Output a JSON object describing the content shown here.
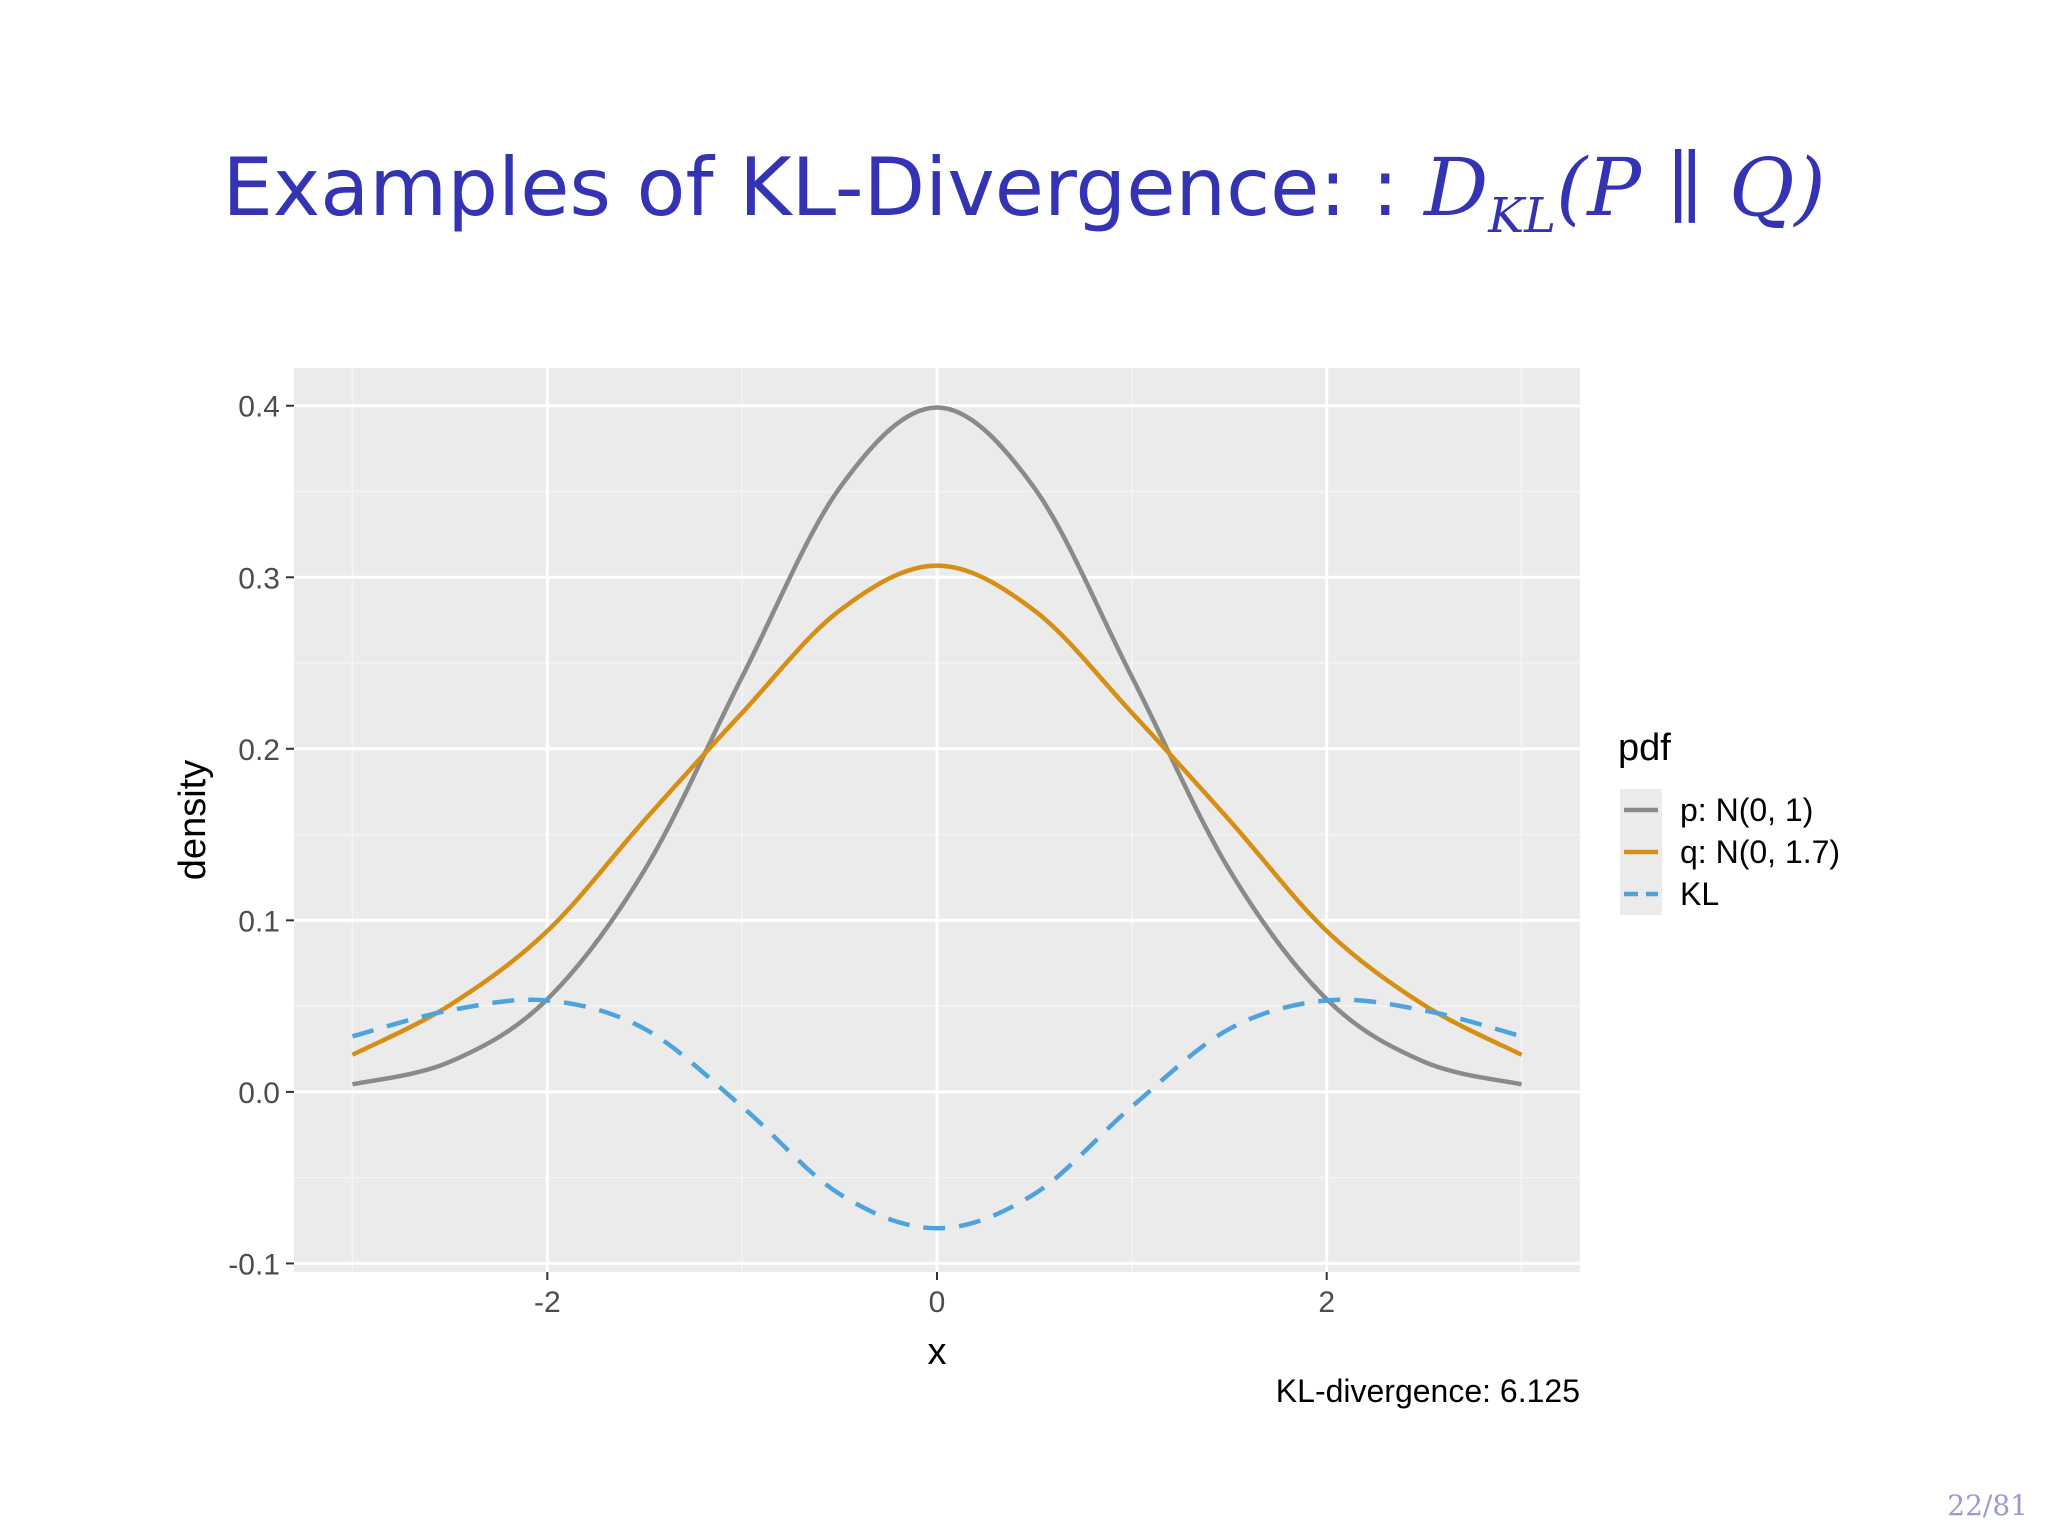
{
  "slide": {
    "title_text": "Examples of KL-Divergence: : ",
    "title_math_d": "D",
    "title_math_sub": "KL",
    "title_math_args": "(P ∥ Q)",
    "page_number": "22/81"
  },
  "chart_data": {
    "type": "line",
    "xlabel": "x",
    "ylabel": "density",
    "xlim": [
      -3.3,
      3.3
    ],
    "ylim": [
      -0.105,
      0.422
    ],
    "x_ticks": [
      -2,
      0,
      2
    ],
    "x_tick_labels": [
      "-2",
      "0",
      "2"
    ],
    "y_ticks": [
      -0.1,
      0.0,
      0.1,
      0.2,
      0.3,
      0.4
    ],
    "y_tick_labels": [
      "-0.1",
      "0.0",
      "0.1",
      "0.2",
      "0.3",
      "0.4"
    ],
    "grid": true,
    "legend": {
      "title": "pdf",
      "position": "right",
      "entries": [
        "p: N(0, 1)",
        "q: N(0, 1.7)",
        "KL"
      ]
    },
    "annotation": "KL-divergence: 6.125",
    "x": [
      -3.0,
      -2.5,
      -2.0,
      -1.5,
      -1.0,
      -0.5,
      0.0,
      0.5,
      1.0,
      1.5,
      2.0,
      2.5,
      3.0
    ],
    "series": [
      {
        "name": "p: N(0, 1)",
        "color": "#8a8a8a",
        "dash": "solid",
        "values": [
          0.0044,
          0.0175,
          0.054,
          0.1295,
          0.242,
          0.352,
          0.399,
          0.352,
          0.242,
          0.1295,
          0.054,
          0.0175,
          0.0044
        ]
      },
      {
        "name": "q: N(0, 1.7)",
        "color": "#d68e15",
        "dash": "solid",
        "values": [
          0.0216,
          0.0506,
          0.0938,
          0.1585,
          0.221,
          0.2806,
          0.3068,
          0.2806,
          0.221,
          0.1585,
          0.0938,
          0.0506,
          0.0216
        ]
      },
      {
        "name": "KL",
        "color": "#4ea3dc",
        "dash": "dashed",
        "values": [
          0.0324,
          0.0475,
          0.0533,
          0.0367,
          -0.0086,
          -0.0595,
          -0.0795,
          -0.0595,
          -0.0086,
          0.0367,
          0.0533,
          0.0475,
          0.0324
        ]
      }
    ]
  }
}
